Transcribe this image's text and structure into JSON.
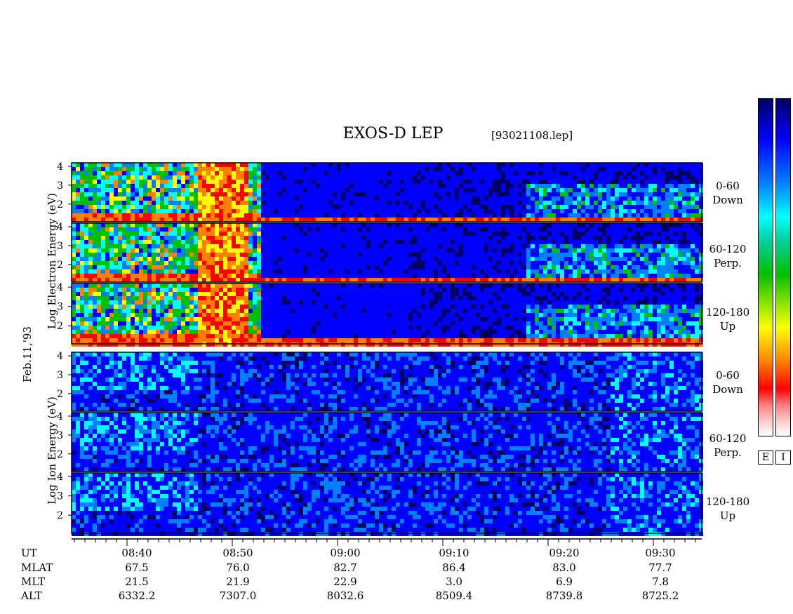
{
  "title": "EXOS-D LEP",
  "subtitle": "[93021108.lep]",
  "date_label": "Feb.11,'93",
  "electron_axis_label": "Log Electron Energy (eV)",
  "ion_axis_label": "Log Ion Energy (eV)",
  "colorbar": {
    "e_label": "E",
    "i_label": "I"
  },
  "panel_labels": [
    {
      "range": "0-60",
      "dir": "Down"
    },
    {
      "range": "60-120",
      "dir": "Perp."
    },
    {
      "range": "120-180",
      "dir": "Up"
    },
    {
      "range": "0-60",
      "dir": "Down"
    },
    {
      "range": "60-120",
      "dir": "Perp."
    },
    {
      "range": "120-180",
      "dir": "Up"
    }
  ],
  "row_labels": [
    "UT",
    "MLAT",
    "MLT",
    "ALT"
  ],
  "columns": [
    {
      "ut": "08:40",
      "mlat": "67.5",
      "mlt": "21.5",
      "alt": "6332.2"
    },
    {
      "ut": "08:50",
      "mlat": "76.0",
      "mlt": "21.9",
      "alt": "7307.0"
    },
    {
      "ut": "09:00",
      "mlat": "82.7",
      "mlt": "22.9",
      "alt": "8032.6"
    },
    {
      "ut": "09:10",
      "mlat": "86.4",
      "mlt": "3.0",
      "alt": "8509.4"
    },
    {
      "ut": "09:20",
      "mlat": "83.0",
      "mlt": "6.9",
      "alt": "8739.8"
    },
    {
      "ut": "09:30",
      "mlat": "77.7",
      "mlt": "7.8",
      "alt": "8725.2"
    }
  ],
  "chart_data": {
    "type": "heatmap",
    "title": "EXOS-D LEP",
    "ylabel_electron": "Log Electron Energy (eV)",
    "ylabel_ion": "Log Ion Energy (eV)",
    "y_ticks": [
      "4",
      "3",
      "2"
    ],
    "x_tick_labels": [
      "08:40",
      "08:50",
      "09:00",
      "09:10",
      "09:20",
      "09:30"
    ],
    "colormap": [
      "#000060",
      "#0000ff",
      "#0080ff",
      "#00ffff",
      "#00c000",
      "#ffff00",
      "#ff8000",
      "#ff0000",
      "#ffffff"
    ],
    "panels": [
      {
        "species": "electron",
        "pitch_range": "0-60",
        "direction": "Down"
      },
      {
        "species": "electron",
        "pitch_range": "60-120",
        "direction": "Perp."
      },
      {
        "species": "electron",
        "pitch_range": "120-180",
        "direction": "Up"
      },
      {
        "species": "ion",
        "pitch_range": "0-60",
        "direction": "Down"
      },
      {
        "species": "ion",
        "pitch_range": "60-120",
        "direction": "Perp."
      },
      {
        "species": "ion",
        "pitch_range": "120-180",
        "direction": "Up"
      }
    ]
  }
}
